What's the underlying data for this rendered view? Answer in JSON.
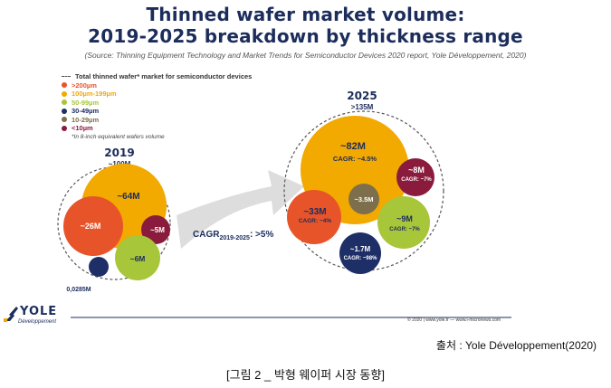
{
  "title_line1": "Thinned wafer market volume:",
  "title_line2": "2019-2025 breakdown by thickness range",
  "source": "(Source: Thinning Equipment Technology and Market Trends for Semiconductor Devices 2020 report, Yole Développement, 2020)",
  "legend": {
    "header": "Total thinned wafer* market for semiconductor devices",
    "items": [
      {
        "label": ">200µm",
        "color": "#e8542a"
      },
      {
        "label": "100µm-199µm",
        "color": "#f2a900"
      },
      {
        "label": "50-99µm",
        "color": "#a8c63a"
      },
      {
        "label": "30-49µm",
        "color": "#1e2e66"
      },
      {
        "label": "10-29µm",
        "color": "#7d6f4c"
      },
      {
        "label": "<10µm",
        "color": "#8a1b3c"
      }
    ],
    "note": "*In 8-inch equivalent wafers volume"
  },
  "chart_data": {
    "type": "bubble",
    "groups": [
      {
        "year": "2019",
        "total": "~100M",
        "bubbles": [
          {
            "segment": ">200µm",
            "label": "~26M",
            "value": 26
          },
          {
            "segment": "100µm-199µm",
            "label": "~64M",
            "value": 64
          },
          {
            "segment": "50-99µm",
            "label": "~6M",
            "value": 6
          },
          {
            "segment": "30-49µm",
            "label": "0,0285M",
            "value": 0.0285
          },
          {
            "segment": "<10µm",
            "label": "~5M",
            "value": 5
          }
        ]
      },
      {
        "year": "2025",
        "total": ">135M",
        "bubbles": [
          {
            "segment": "100µm-199µm",
            "label": "~82M",
            "cagr": "CAGR: ~4.5%",
            "value": 82
          },
          {
            "segment": ">200µm",
            "label": "~33M",
            "cagr": "CAGR: ~4%",
            "value": 33
          },
          {
            "segment": "10-29µm",
            "label": "~3.5M",
            "value": 3.5
          },
          {
            "segment": "<10µm",
            "label": "~8M",
            "cagr": "CAGR: ~7%",
            "value": 8
          },
          {
            "segment": "50-99µm",
            "label": "~9M",
            "cagr": "CAGR: ~7%",
            "value": 9
          },
          {
            "segment": "30-49µm",
            "label": "~1.7M",
            "cagr": "CAGR: ~98%",
            "value": 1.7
          }
        ]
      }
    ],
    "arrow": {
      "label": "CAGR",
      "subscript": "2019-2025",
      "value": ": >5%"
    }
  },
  "footer": {
    "logo": "YOLE",
    "logo_sub": "Développement",
    "copyright": "© 2020 | www.yole.fr — www.i-micronews.com"
  },
  "caption_source": "출처 : Yole Développement(2020)",
  "caption": "[그림 2 _ 박형 웨이퍼 시장 동향]"
}
